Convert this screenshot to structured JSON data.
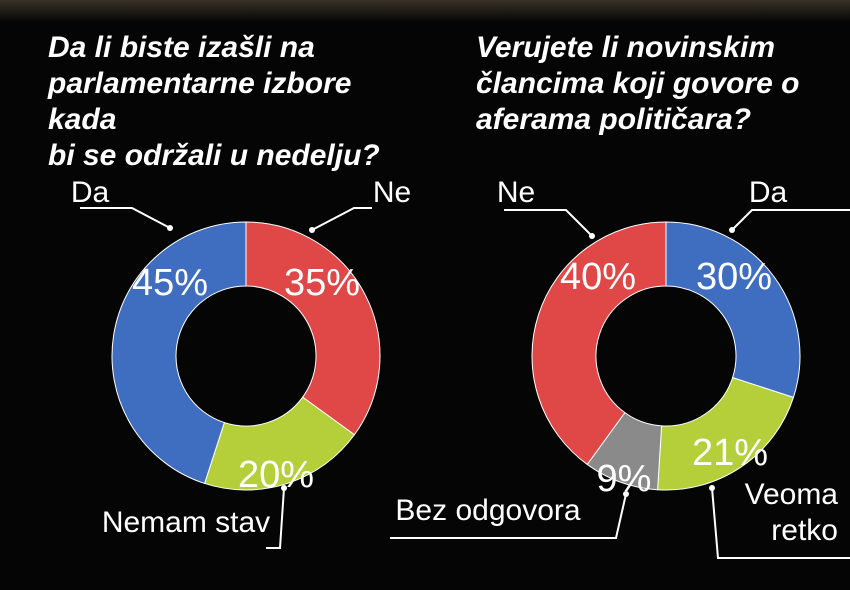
{
  "chart_data": [
    {
      "type": "pie",
      "title": "Da li biste izašli na\nparlamentarne izbore kada\nbi se održali u nedelju?",
      "slices": [
        {
          "label": "Ne",
          "value": 35,
          "value_label": "35%",
          "color": "#e04848",
          "label_color": "#ffffff",
          "pct_color": "#ffffff"
        },
        {
          "label": "Nemam stav",
          "value": 20,
          "value_label": "20%",
          "color": "#b5cf3a",
          "label_color": "#ffffff",
          "pct_color": "#ffffff"
        },
        {
          "label": "Da",
          "value": 45,
          "value_label": "45%",
          "color": "#3f6dc0",
          "label_color": "#ffffff",
          "pct_color": "#ffffff"
        }
      ]
    },
    {
      "type": "pie",
      "title": "Verujete li novinskim\nčlancima koji govore o\naferama političara?",
      "slices": [
        {
          "label": "Da",
          "value": 30,
          "value_label": "30%",
          "color": "#3f6dc0",
          "label_color": "#ffffff",
          "pct_color": "#ffffff"
        },
        {
          "label": "Veoma retko",
          "value": 21,
          "value_label": "21%",
          "color": "#b5cf3a",
          "label_color": "#ffffff",
          "pct_color": "#ffffff"
        },
        {
          "label": "Bez odgovora",
          "value": 9,
          "value_label": "9%",
          "color": "#8a8a8a",
          "label_color": "#ffffff",
          "pct_color": "#ffffff"
        },
        {
          "label": "Ne",
          "value": 40,
          "value_label": "40%",
          "color": "#e04848",
          "label_color": "#ffffff",
          "pct_color": "#ffffff"
        }
      ]
    }
  ]
}
